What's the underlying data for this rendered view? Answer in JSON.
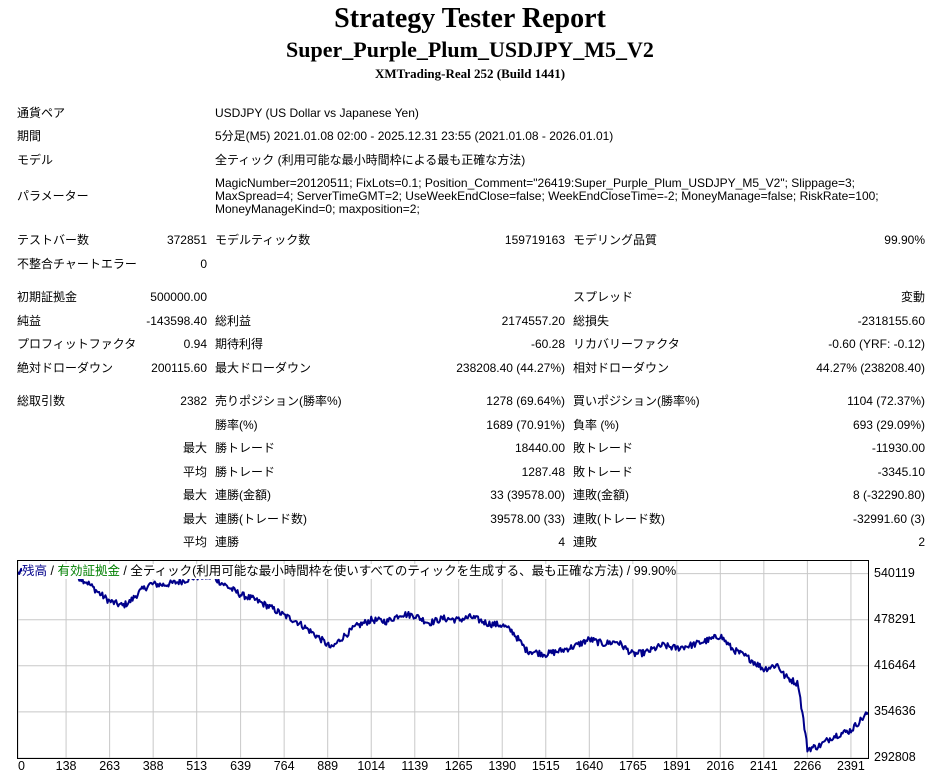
{
  "header": {
    "title": "Strategy Tester Report",
    "subtitle": "Super_Purple_Plum_USDJPY_M5_V2",
    "build": "XMTrading-Real 252 (Build 1441)"
  },
  "info": {
    "pair_label": "通貨ペア",
    "pair_value": "USDJPY (US Dollar vs Japanese Yen)",
    "period_label": "期間",
    "period_value": "5分足(M5) 2021.01.08 02:00 - 2025.12.31 23:55 (2021.01.08 - 2026.01.01)",
    "model_label": "モデル",
    "model_value": "全ティック (利用可能な最小時間枠による最も正確な方法)",
    "params_label": "パラメーター",
    "params_value": "MagicNumber=20120511; FixLots=0.1; Position_Comment=\"26419:Super_Purple_Plum_USDJPY_M5_V2\"; Slippage=3; MaxSpread=4; ServerTimeGMT=2; UseWeekEndClose=false; WeekEndCloseTime=-2; MoneyManage=false; RiskRate=100; MoneyManageKind=0; maxposition=2;"
  },
  "stats": {
    "bars_label": "テストバー数",
    "bars_value": "372851",
    "ticks_label": "モデルティック数",
    "ticks_value": "159719163",
    "quality_label": "モデリング品質",
    "quality_value": "99.90%",
    "mismatch_label": "不整合チャートエラー",
    "mismatch_value": "0",
    "deposit_label": "初期証拠金",
    "deposit_value": "500000.00",
    "spread_label": "スプレッド",
    "spread_value": "変動",
    "net_label": "純益",
    "net_value": "-143598.40",
    "gross_profit_label": "総利益",
    "gross_profit_value": "2174557.20",
    "gross_loss_label": "総損失",
    "gross_loss_value": "-2318155.60",
    "pf_label": "プロフィットファクタ",
    "pf_value": "0.94",
    "expected_label": "期待利得",
    "expected_value": "-60.28",
    "recovery_label": "リカバリーファクタ",
    "recovery_value": "-0.60 (YRF: -0.12)",
    "abs_dd_label": "絶対ドローダウン",
    "abs_dd_value": "200115.60",
    "max_dd_label": "最大ドローダウン",
    "max_dd_value": "238208.40 (44.27%)",
    "rel_dd_label": "相対ドローダウン",
    "rel_dd_value": "44.27% (238208.40)",
    "trades_label": "総取引数",
    "trades_value": "2382",
    "short_label": "売りポジション(勝率%)",
    "short_value": "1278 (69.64%)",
    "long_label": "買いポジション(勝率%)",
    "long_value": "1104 (72.37%)",
    "win_label": "勝率(%)",
    "win_value": "1689 (70.91%)",
    "loss_label": "負率 (%)",
    "loss_value": "693 (29.09%)",
    "max1": "最大",
    "largest_win_label": "勝トレード",
    "largest_win_value": "18440.00",
    "largest_loss_label": "敗トレード",
    "largest_loss_value": "-11930.00",
    "avg1": "平均",
    "avg_win_label": "勝トレード",
    "avg_win_value": "1287.48",
    "avg_loss_label": "敗トレード",
    "avg_loss_value": "-3345.10",
    "max2": "最大",
    "cons_wins_amt_label": "連勝(金額)",
    "cons_wins_amt_value": "33 (39578.00)",
    "cons_loss_amt_label": "連敗(金額)",
    "cons_loss_amt_value": "8 (-32290.80)",
    "max3": "最大",
    "cons_wins_trd_label": "連勝(トレード数)",
    "cons_wins_trd_value": "39578.00 (33)",
    "cons_loss_trd_label": "連敗(トレード数)",
    "cons_loss_trd_value": "-32991.60 (3)",
    "avg2": "平均",
    "avg_cons_win_label": "連勝",
    "avg_cons_win_value": "4",
    "avg_cons_loss_label": "連敗",
    "avg_cons_loss_value": "2"
  },
  "chart_legend": {
    "balance": "残高",
    "sep1": " / ",
    "equity": "有効証拠金",
    "rest": " / 全ティック(利用可能な最小時間枠を使いすべてのティックを生成する、最も正確な方法) / 99.90%"
  },
  "chart_data": {
    "type": "line",
    "series": [
      {
        "name": "残高",
        "x": [
          0,
          40,
          90,
          110,
          138,
          155,
          200,
          230,
          263,
          300,
          320,
          350,
          380,
          420,
          470,
          513,
          560,
          600,
          639,
          680,
          720,
          764,
          800,
          830,
          870,
          900,
          930,
          970,
          1014,
          1060,
          1100,
          1139,
          1180,
          1220,
          1265,
          1300,
          1350,
          1390,
          1420,
          1460,
          1515,
          1560,
          1600,
          1640,
          1680,
          1720,
          1765,
          1800,
          1850,
          1891,
          1940,
          1990,
          2016,
          2050,
          2100,
          2141,
          2180,
          2200,
          2240,
          2266,
          2300,
          2340,
          2391,
          2440
        ],
        "values": [
          541000,
          545000,
          548000,
          546000,
          545000,
          541000,
          528000,
          515000,
          503000,
          497000,
          502000,
          516000,
          526000,
          525000,
          530000,
          536000,
          535000,
          523000,
          512000,
          505000,
          496000,
          484000,
          476000,
          466000,
          452000,
          440000,
          454000,
          469000,
          478000,
          476000,
          486000,
          484000,
          474000,
          480000,
          478000,
          482000,
          473000,
          471000,
          462000,
          437000,
          432000,
          437000,
          443000,
          452000,
          446000,
          449000,
          432000,
          434000,
          444000,
          440000,
          445000,
          452000,
          457000,
          439000,
          426000,
          412000,
          418000,
          403000,
          392000,
          305000,
          309000,
          322000,
          330000,
          354000
        ]
      }
    ],
    "x_ticks": [
      "0",
      "138",
      "263",
      "388",
      "513",
      "639",
      "764",
      "889",
      "1014",
      "1139",
      "1265",
      "1390",
      "1515",
      "1640",
      "1765",
      "1891",
      "2016",
      "2141",
      "2266",
      "2391"
    ],
    "y_ticks": [
      "540119",
      "478291",
      "416464",
      "354636",
      "292808"
    ],
    "xlim": [
      0,
      2440
    ],
    "ylim": [
      292808,
      557000
    ],
    "line_color": "#00008b",
    "grid_color": "#c8c8c8",
    "legend_colors": {
      "balance": "#00008b",
      "equity": "#008000"
    }
  }
}
